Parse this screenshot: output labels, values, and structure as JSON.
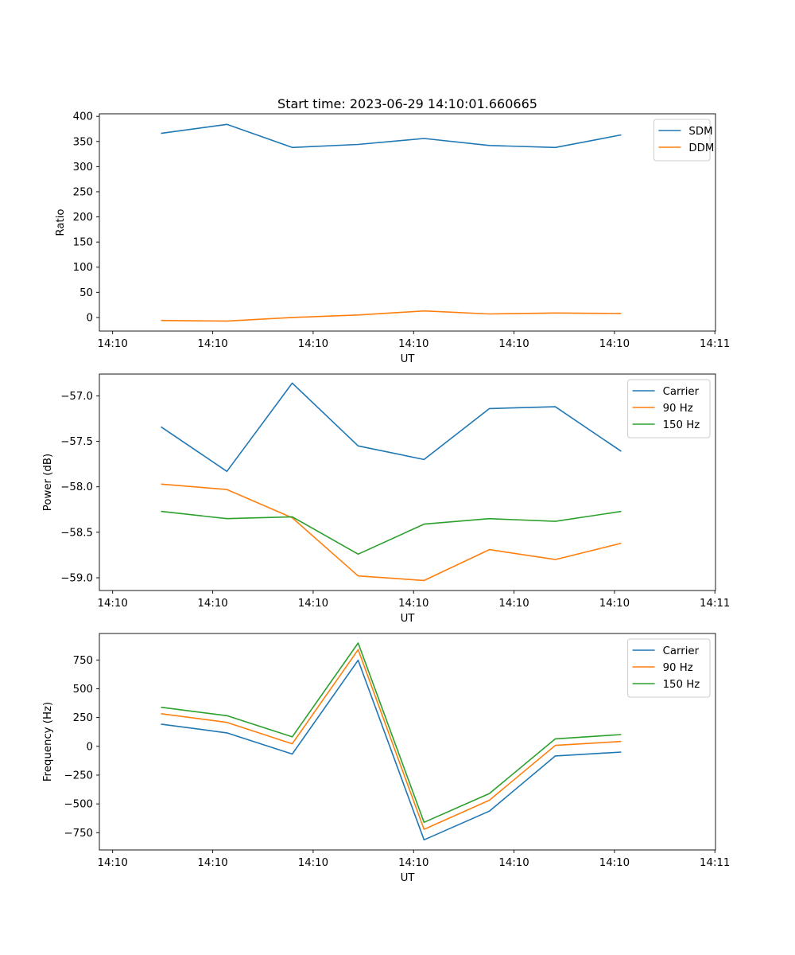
{
  "chart_data": [
    {
      "type": "line",
      "title": "Start time: 2023-06-29 14:10:01.660665",
      "xlabel": "UT",
      "ylabel": "Ratio",
      "x_tick_labels": [
        "14:10",
        "14:10",
        "14:10",
        "14:10",
        "14:10",
        "14:10",
        "14:11"
      ],
      "y_ticks": [
        0,
        50,
        100,
        150,
        200,
        250,
        300,
        350,
        400
      ],
      "ylim": [
        -27,
        405
      ],
      "legend_loc": "upper right",
      "grid": false,
      "series": [
        {
          "name": "SDM",
          "color": "#1f77b4",
          "values": [
            366,
            384,
            338,
            344,
            356,
            342,
            338,
            363
          ]
        },
        {
          "name": "DDM",
          "color": "#ff7f0e",
          "values": [
            -6,
            -7,
            0,
            5,
            13,
            7,
            9,
            8
          ]
        }
      ]
    },
    {
      "type": "line",
      "title": "",
      "xlabel": "UT",
      "ylabel": "Power (dB)",
      "x_tick_labels": [
        "14:10",
        "14:10",
        "14:10",
        "14:10",
        "14:10",
        "14:10",
        "14:11"
      ],
      "y_ticks": [
        -57.0,
        -57.5,
        -58.0,
        -58.5,
        -59.0
      ],
      "y_tick_labels": [
        "−57.0",
        "−57.5",
        "−58.0",
        "−58.5",
        "−59.0"
      ],
      "ylim": [
        -59.14,
        -56.76
      ],
      "legend_loc": "upper right",
      "grid": false,
      "series": [
        {
          "name": "Carrier",
          "color": "#1f77b4",
          "values": [
            -57.34,
            -57.83,
            -56.86,
            -57.55,
            -57.7,
            -57.14,
            -57.12,
            -57.61
          ]
        },
        {
          "name": "90 Hz",
          "color": "#ff7f0e",
          "values": [
            -57.97,
            -58.03,
            -58.34,
            -58.98,
            -59.03,
            -58.69,
            -58.8,
            -58.62
          ]
        },
        {
          "name": "150 Hz",
          "color": "#2ca02c",
          "values": [
            -58.27,
            -58.35,
            -58.33,
            -58.74,
            -58.41,
            -58.35,
            -58.38,
            -58.27
          ]
        }
      ]
    },
    {
      "type": "line",
      "title": "",
      "xlabel": "UT",
      "ylabel": "Frequency (Hz)",
      "x_tick_labels": [
        "14:10",
        "14:10",
        "14:10",
        "14:10",
        "14:10",
        "14:10",
        "14:11"
      ],
      "y_ticks": [
        750,
        500,
        250,
        0,
        -250,
        -500,
        -750
      ],
      "y_tick_labels": [
        "750",
        "500",
        "250",
        "0",
        "−250",
        "−500",
        "−750"
      ],
      "ylim": [
        -900,
        980
      ],
      "legend_loc": "upper right",
      "grid": false,
      "series": [
        {
          "name": "Carrier",
          "color": "#1f77b4",
          "values": [
            193,
            117,
            -67,
            748,
            -812,
            -563,
            -84,
            -50
          ]
        },
        {
          "name": "90 Hz",
          "color": "#ff7f0e",
          "values": [
            283,
            208,
            22,
            840,
            -721,
            -468,
            8,
            42
          ]
        },
        {
          "name": "150 Hz",
          "color": "#2ca02c",
          "values": [
            339,
            266,
            82,
            897,
            -660,
            -410,
            65,
            102
          ]
        }
      ]
    }
  ]
}
